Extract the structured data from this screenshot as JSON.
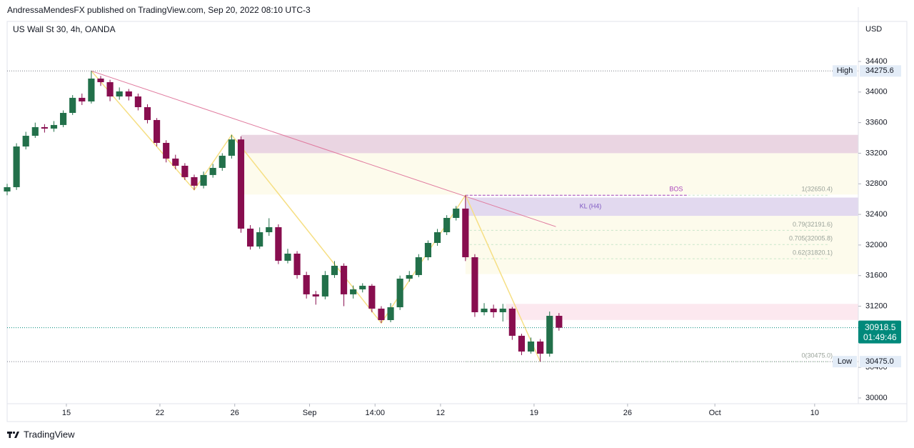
{
  "header": "AndressaMendesFX published on TradingView.com, Sep 20, 2022 08:10 UTC-3",
  "footer": "TradingView",
  "chart_data": {
    "type": "candlestick",
    "title": "US Wall St 30, 4h, OANDA",
    "y_axis_label": "USD",
    "x": [
      0,
      3,
      6,
      9,
      12,
      15,
      18,
      21,
      24,
      27,
      30,
      33,
      36,
      39,
      42,
      45,
      48,
      51,
      54,
      57,
      60,
      63,
      66,
      69,
      72,
      75,
      78,
      81,
      84,
      87,
      90,
      93,
      96,
      99,
      102,
      105,
      108,
      111,
      114,
      117,
      120,
      123,
      126,
      129,
      132,
      135,
      138,
      141,
      144,
      147,
      150,
      153,
      156,
      159,
      162,
      165,
      168,
      171,
      174,
      177
    ],
    "open": [
      32700,
      32756,
      33288,
      33428,
      33541,
      33522,
      33569,
      33727,
      33924,
      33877,
      34176,
      34129,
      33942,
      34008,
      33942,
      33802,
      33634,
      33335,
      33130,
      33036,
      32887,
      32775,
      32915,
      33008,
      33167,
      33380,
      32214,
      31980,
      32167,
      32233,
      31794,
      31887,
      31607,
      31355,
      31327,
      31607,
      31728,
      31355,
      31420,
      31467,
      31168,
      31018,
      31186,
      31560,
      31607,
      31840,
      32027,
      32167,
      32354,
      32476,
      31840,
      31121,
      31168,
      31121,
      31168,
      30813,
      30607,
      30738,
      30579,
      31074
    ],
    "high": [
      32800,
      33330,
      33480,
      33600,
      33580,
      33620,
      33760,
      33960,
      33980,
      34275.6,
      34210,
      34160,
      34060,
      34040,
      33980,
      33840,
      33660,
      33370,
      33180,
      33070,
      32920,
      32960,
      33060,
      33200,
      33440,
      33420,
      32260,
      32230,
      32350,
      32270,
      31950,
      31920,
      31650,
      31400,
      31660,
      31790,
      31760,
      31470,
      31500,
      31490,
      31200,
      31240,
      31600,
      31660,
      31880,
      32060,
      32210,
      32390,
      32510,
      32650.4,
      31880,
      31240,
      31220,
      31230,
      31190,
      30840,
      30790,
      30770,
      31130,
      31110
    ],
    "low": [
      32650,
      32720,
      33250,
      33400,
      33470,
      33480,
      33540,
      33700,
      33830,
      33850,
      34080,
      33880,
      33900,
      33890,
      33760,
      33590,
      33290,
      33080,
      32990,
      32850,
      32720,
      32740,
      32880,
      32970,
      33130,
      32160,
      31940,
      31950,
      32120,
      31750,
      31760,
      31560,
      31300,
      31220,
      31290,
      31570,
      31200,
      31300,
      31380,
      31120,
      30980,
      30990,
      31150,
      31520,
      31580,
      31800,
      31990,
      32130,
      32320,
      31790,
      31060,
      31080,
      31050,
      31000,
      30760,
      30560,
      30580,
      30475,
      30540,
      30880
    ],
    "close": [
      32756,
      33288,
      33428,
      33541,
      33522,
      33569,
      33727,
      33924,
      33877,
      34176,
      34129,
      33942,
      34008,
      33942,
      33802,
      33634,
      33335,
      33130,
      33036,
      32887,
      32775,
      32915,
      33008,
      33167,
      33380,
      32214,
      31980,
      32167,
      32233,
      31794,
      31887,
      31607,
      31355,
      31327,
      31607,
      31728,
      31355,
      31420,
      31467,
      31168,
      31018,
      31186,
      31560,
      31607,
      31840,
      32027,
      32167,
      32354,
      32476,
      31840,
      31121,
      31168,
      31121,
      31168,
      30813,
      30607,
      30738,
      30579,
      31074,
      30918.5
    ],
    "up_color": "#22704a",
    "down_color": "#880e4f",
    "xlim": [
      0,
      273
    ],
    "xticks": [
      {
        "value": 19,
        "label": "15"
      },
      {
        "value": 49,
        "label": "22"
      },
      {
        "value": 73,
        "label": "26"
      },
      {
        "value": 97,
        "label": "Sep"
      },
      {
        "value": 118,
        "label": "14:00"
      },
      {
        "value": 139,
        "label": "12"
      },
      {
        "value": 169,
        "label": "19"
      },
      {
        "value": 199,
        "label": "26"
      },
      {
        "value": 227,
        "label": "Oct"
      },
      {
        "value": 259,
        "label": "10"
      }
    ],
    "ylim": [
      29925,
      34923
    ],
    "yticks": [
      30000,
      30400,
      30800,
      31200,
      31600,
      32000,
      32400,
      32800,
      33200,
      33600,
      34000,
      34400
    ],
    "high_line": {
      "label": "High",
      "value": 34275.6,
      "color": "#787b86"
    },
    "low_line": {
      "label": "Low",
      "value": 30475,
      "value_label": "30475.0",
      "color": "#787b86"
    },
    "last_price": {
      "value": 30918.5,
      "countdown": "01:49:46",
      "color": "#00897b"
    },
    "zones": [
      {
        "x0": 75,
        "top": 33440,
        "bottom": 33200,
        "color": "#ead5e2"
      },
      {
        "x0": 75,
        "top": 33200,
        "bottom": 32660,
        "color": "#fdfbec"
      },
      {
        "x0": 147,
        "top": 32620,
        "bottom": 32380,
        "color": "#e2d9ef",
        "label": "KL (H4)"
      },
      {
        "x0": 147,
        "top": 32380,
        "bottom": 31620,
        "color": "#fdfbec"
      },
      {
        "x0": 160,
        "top": 31230,
        "bottom": 31020,
        "color": "#fce8ef"
      }
    ],
    "fib": {
      "x0": 147,
      "color": "#c8e6c9",
      "levels": [
        {
          "value": 32650.4,
          "label": "1(32650.4)"
        },
        {
          "value": 32191.6,
          "label": "0.79(32191.6)"
        },
        {
          "value": 32005.8,
          "label": "0.705(32005.8)"
        },
        {
          "value": 31820.1,
          "label": "0.62(31820.1)"
        },
        {
          "value": 30475,
          "label": "0(30475.0)"
        }
      ]
    },
    "bos": {
      "label": "BOS",
      "value": 32650.4,
      "x": [
        147,
        218
      ],
      "color": "#ab47bc"
    },
    "trendline": {
      "x": [
        27,
        176
      ],
      "y": [
        34275.6,
        32240
      ],
      "color": "#e07a9e"
    },
    "zigzag": {
      "x": [
        27,
        60,
        72,
        120,
        147,
        171
      ],
      "y": [
        34275.6,
        32720,
        33440,
        30980,
        32650.4,
        30475
      ],
      "color": "#f6df84"
    }
  }
}
